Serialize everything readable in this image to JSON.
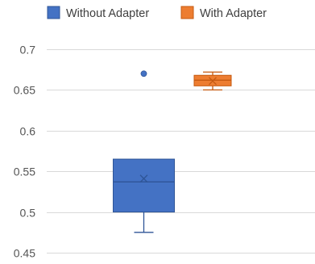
{
  "chart_data": {
    "type": "box",
    "title": "",
    "xlabel": "",
    "ylabel": "",
    "ylim": [
      0.45,
      0.7
    ],
    "y_ticks": [
      0.45,
      0.5,
      0.55,
      0.6,
      0.65,
      0.7
    ],
    "y_tick_labels": [
      "0.45",
      "0.5",
      "0.55",
      "0.6",
      "0.65",
      "0.7"
    ],
    "grid": true,
    "legend_position": "top",
    "series": [
      {
        "name": "Without Adapter",
        "color": "#4472C4",
        "border_color": "#2F5597",
        "whisker_low": 0.475,
        "q1": 0.5,
        "median": 0.537,
        "mean": 0.541,
        "q3": 0.565,
        "whisker_high": 0.565,
        "outliers": [
          0.67
        ]
      },
      {
        "name": "With Adapter",
        "color": "#ED7D31",
        "border_color": "#C55A11",
        "whisker_low": 0.65,
        "q1": 0.655,
        "median": 0.662,
        "mean": 0.661,
        "q3": 0.668,
        "whisker_high": 0.672,
        "outliers": []
      }
    ]
  }
}
